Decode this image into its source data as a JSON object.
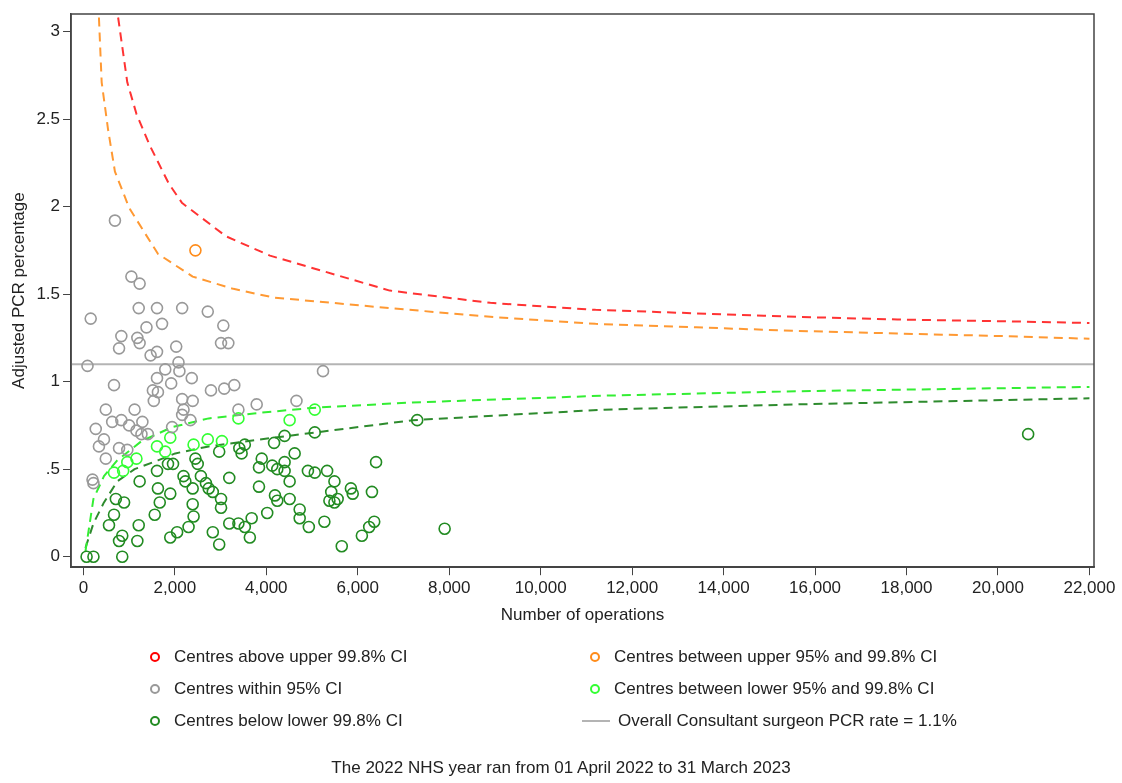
{
  "chart_data": {
    "type": "scatter",
    "xlabel": "Number of operations",
    "ylabel": "Adjusted PCR percentage",
    "xlim": [
      -270,
      22100
    ],
    "ylim": [
      -0.06,
      3.1
    ],
    "xticks": [
      0,
      {
        "value": 2000,
        "label": "2,000"
      },
      {
        "value": 4000,
        "label": "4,000"
      },
      {
        "value": 6000,
        "label": "6,000"
      },
      {
        "value": 8000,
        "label": "8,000"
      },
      {
        "value": 10000,
        "label": "10,000"
      },
      {
        "value": 12000,
        "label": "12,000"
      },
      {
        "value": 14000,
        "label": "14,000"
      },
      {
        "value": 16000,
        "label": "16,000"
      },
      {
        "value": 18000,
        "label": "18,000"
      },
      {
        "value": 20000,
        "label": "20,000"
      },
      {
        "value": 22000,
        "label": "22,000"
      }
    ],
    "yticks": [
      0,
      {
        "value": 0.5,
        "label": ".5"
      },
      1,
      1.5,
      2,
      2.5,
      3
    ],
    "grid": false,
    "legend": "bottom",
    "marker": "circle",
    "series": [
      {
        "name": "Centres above upper 99.8% CI",
        "type": "scatter",
        "color": "#ff0000"
      },
      {
        "name": "Centres between upper 95% and 99.8% CI",
        "type": "scatter",
        "color": "#ff8c1a",
        "x": [
          2450
        ],
        "values": [
          1.75
        ]
      },
      {
        "name": "Centres within 95% CI",
        "type": "scatter",
        "color": "#999999",
        "x": [
          690,
          1050,
          1230,
          160,
          1210,
          1610,
          2160,
          2720,
          1380,
          1720,
          3060,
          830,
          780,
          1180,
          1230,
          1470,
          1610,
          2030,
          3010,
          3170,
          90,
          2080,
          1790,
          2100,
          1610,
          2370,
          670,
          1920,
          1520,
          1630,
          2790,
          3080,
          3300,
          1540,
          2160,
          2390,
          3790,
          490,
          1120,
          2190,
          2340,
          2160,
          3390,
          630,
          830,
          1000,
          1290,
          1160,
          1270,
          1410,
          1940,
          270,
          450,
          340,
          780,
          960,
          490,
          200,
          220,
          5240,
          4660
        ],
        "values": [
          1.92,
          1.6,
          1.56,
          1.36,
          1.42,
          1.42,
          1.42,
          1.4,
          1.31,
          1.33,
          1.32,
          1.26,
          1.19,
          1.25,
          1.22,
          1.15,
          1.17,
          1.2,
          1.22,
          1.22,
          1.09,
          1.11,
          1.07,
          1.06,
          1.02,
          1.02,
          0.98,
          0.99,
          0.95,
          0.94,
          0.95,
          0.96,
          0.98,
          0.89,
          0.9,
          0.89,
          0.87,
          0.84,
          0.84,
          0.84,
          0.78,
          0.81,
          0.84,
          0.77,
          0.78,
          0.75,
          0.77,
          0.72,
          0.7,
          0.7,
          0.74,
          0.73,
          0.67,
          0.63,
          0.62,
          0.61,
          0.56,
          0.44,
          0.42,
          1.06,
          0.89
        ]
      },
      {
        "name": "Centres between lower 95% and 99.8% CI",
        "type": "scatter",
        "color": "#33ff33",
        "x": [
          1610,
          1790,
          1900,
          2410,
          2720,
          3030,
          3390,
          960,
          1160,
          670,
          870,
          4510,
          5060
        ],
        "values": [
          0.63,
          0.6,
          0.68,
          0.64,
          0.67,
          0.66,
          0.79,
          0.54,
          0.56,
          0.48,
          0.49,
          0.78,
          0.84
        ]
      },
      {
        "name": "Centres below lower 99.8% CI",
        "type": "scatter",
        "color": "#228b22",
        "x": [
          70,
          220,
          850,
          1230,
          710,
          890,
          670,
          560,
          850,
          780,
          1180,
          1210,
          1560,
          1670,
          1630,
          1900,
          2190,
          2230,
          2390,
          2570,
          2680,
          2740,
          2830,
          3010,
          3010,
          2390,
          2410,
          2300,
          2050,
          1900,
          2830,
          2970,
          3190,
          3390,
          3530,
          3680,
          3640,
          4020,
          3840,
          3190,
          3900,
          3840,
          4130,
          4190,
          1610,
          1850,
          1960,
          2450,
          2500,
          2970,
          3410,
          3460,
          3530,
          4170,
          4400,
          5060,
          7300,
          4620,
          4400,
          4240,
          4400,
          4510,
          4910,
          5060,
          5330,
          5490,
          5420,
          5380,
          5490,
          5560,
          5850,
          5890,
          6310,
          6400,
          4240,
          4510,
          4730,
          4730,
          4930,
          5270,
          5650,
          6090,
          6250,
          6360,
          7900,
          20660
        ],
        "values": [
          0,
          0,
          0,
          0.43,
          0.33,
          0.31,
          0.24,
          0.18,
          0.12,
          0.09,
          0.09,
          0.18,
          0.24,
          0.31,
          0.39,
          0.36,
          0.46,
          0.43,
          0.39,
          0.46,
          0.42,
          0.39,
          0.37,
          0.33,
          0.28,
          0.3,
          0.23,
          0.17,
          0.14,
          0.11,
          0.14,
          0.07,
          0.19,
          0.19,
          0.17,
          0.22,
          0.11,
          0.25,
          0.4,
          0.45,
          0.56,
          0.51,
          0.52,
          0.35,
          0.49,
          0.53,
          0.53,
          0.56,
          0.53,
          0.6,
          0.62,
          0.59,
          0.64,
          0.65,
          0.69,
          0.71,
          0.78,
          0.59,
          0.54,
          0.5,
          0.49,
          0.43,
          0.49,
          0.48,
          0.49,
          0.43,
          0.37,
          0.32,
          0.31,
          0.33,
          0.39,
          0.36,
          0.37,
          0.54,
          0.32,
          0.33,
          0.27,
          0.22,
          0.17,
          0.2,
          0.06,
          0.12,
          0.17,
          0.2,
          0.16,
          0.7
        ]
      },
      {
        "type": "line",
        "color": "#ff3333",
        "line_style": "dashed",
        "marker": "none",
        "x": [
          760,
          960,
          1160,
          1450,
          1870,
          2160,
          3120,
          4080,
          6700,
          8900,
          11200,
          13400,
          15600,
          17800,
          20100,
          22000
        ],
        "values": [
          3.08,
          2.71,
          2.53,
          2.35,
          2.13,
          2.02,
          1.83,
          1.72,
          1.52,
          1.45,
          1.41,
          1.39,
          1.37,
          1.355,
          1.345,
          1.335
        ]
      },
      {
        "type": "line",
        "color": "#ff9933",
        "line_style": "dashed",
        "marker": "none",
        "x": [
          340,
          400,
          540,
          690,
          960,
          1030,
          1630,
          2390,
          3280,
          4170,
          6700,
          8900,
          11200,
          13400,
          15600,
          17800,
          20100,
          22000
        ],
        "values": [
          3.08,
          2.71,
          2.44,
          2.2,
          2.02,
          1.98,
          1.73,
          1.6,
          1.53,
          1.48,
          1.42,
          1.37,
          1.33,
          1.31,
          1.29,
          1.275,
          1.26,
          1.245
        ]
      },
      {
        "type": "line",
        "color": "#33ee33",
        "line_style": "dashed",
        "marker": "none",
        "x": [
          45,
          220,
          450,
          740,
          1270,
          1940,
          2740,
          3790,
          5000,
          7100,
          11400,
          15600,
          22000
        ],
        "values": [
          0.03,
          0.33,
          0.46,
          0.55,
          0.66,
          0.74,
          0.79,
          0.82,
          0.85,
          0.88,
          0.92,
          0.945,
          0.97
        ]
      },
      {
        "type": "line",
        "color": "#2e8b2e",
        "line_style": "dashed",
        "marker": "none",
        "x": [
          45,
          220,
          450,
          740,
          1120,
          1630,
          2010,
          2740,
          4170,
          7210,
          11380,
          15620,
          22000
        ],
        "values": [
          0.05,
          0.19,
          0.31,
          0.43,
          0.5,
          0.55,
          0.59,
          0.63,
          0.68,
          0.78,
          0.84,
          0.87,
          0.905
        ]
      }
    ],
    "ref_lines": [
      {
        "axis": "y",
        "value": 1.1,
        "label": "Overall Consultant surgeon PCR rate = 1.1%",
        "color": "#b4b4b4"
      }
    ],
    "annotations": [
      "The 2022 NHS year ran from 01 April 2022 to 31 March 2023"
    ]
  }
}
